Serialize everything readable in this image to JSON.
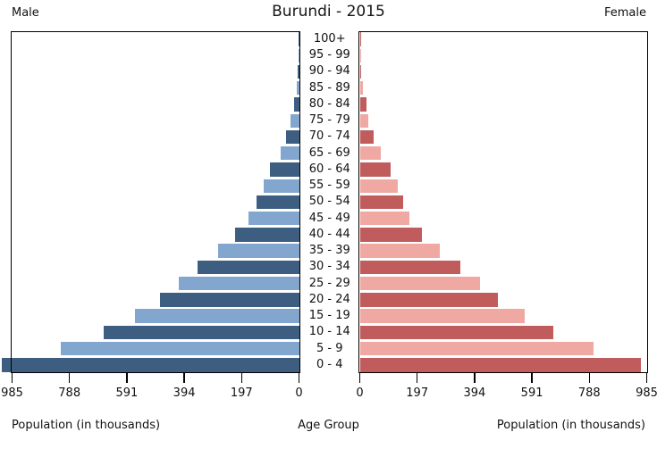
{
  "title": "Burundi - 2015",
  "left_header": "Male",
  "right_header": "Female",
  "axis": {
    "male_tick_labels": [
      "985",
      "788",
      "591",
      "394",
      "197",
      "0"
    ],
    "female_tick_labels": [
      "0",
      "197",
      "394",
      "591",
      "788",
      "985"
    ],
    "left_axis_label": "Population (in thousands)",
    "center_axis_label": "Age Group",
    "right_axis_label": "Population (in thousands)"
  },
  "colors": {
    "male_dark": "#3d5e80",
    "male_light": "#82a6ce",
    "female_dark": "#c05c5c",
    "female_light": "#f0a8a3",
    "border": "#000000",
    "background": "#ffffff"
  },
  "chart_data": {
    "type": "bar",
    "subtype": "population-pyramid",
    "title": "Burundi - 2015",
    "units": "thousands of people",
    "xlabel": "Population (in thousands)",
    "ylabel": "Age Group",
    "axis_range_each_side": [
      0,
      985
    ],
    "tick_step": 197,
    "grid": false,
    "legend_position": "top-corners",
    "categories_top_to_bottom": [
      "100+",
      "95 - 99",
      "90 - 94",
      "85 - 89",
      "80 - 84",
      "75 - 79",
      "70 - 74",
      "65 - 69",
      "60 - 64",
      "55 - 59",
      "50 - 54",
      "45 - 49",
      "40 - 44",
      "35 - 39",
      "30 - 34",
      "25 - 29",
      "20 - 24",
      "15 - 19",
      "10 - 14",
      "5 - 9",
      "0 - 4"
    ],
    "series": [
      {
        "name": "Male",
        "side": "left",
        "values_top_to_bottom": [
          1,
          2,
          4,
          7,
          18,
          30,
          45,
          62,
          100,
          121,
          145,
          172,
          220,
          278,
          349,
          414,
          476,
          564,
          672,
          818,
          1020
        ]
      },
      {
        "name": "Female",
        "side": "right",
        "values_top_to_bottom": [
          1,
          2,
          5,
          11,
          23,
          30,
          48,
          71,
          106,
          129,
          149,
          170,
          213,
          274,
          344,
          412,
          473,
          566,
          663,
          801,
          965
        ]
      }
    ],
    "note": "Male 0-4 bar exceeds the 985 axis maximum and is clipped at the image edge"
  }
}
